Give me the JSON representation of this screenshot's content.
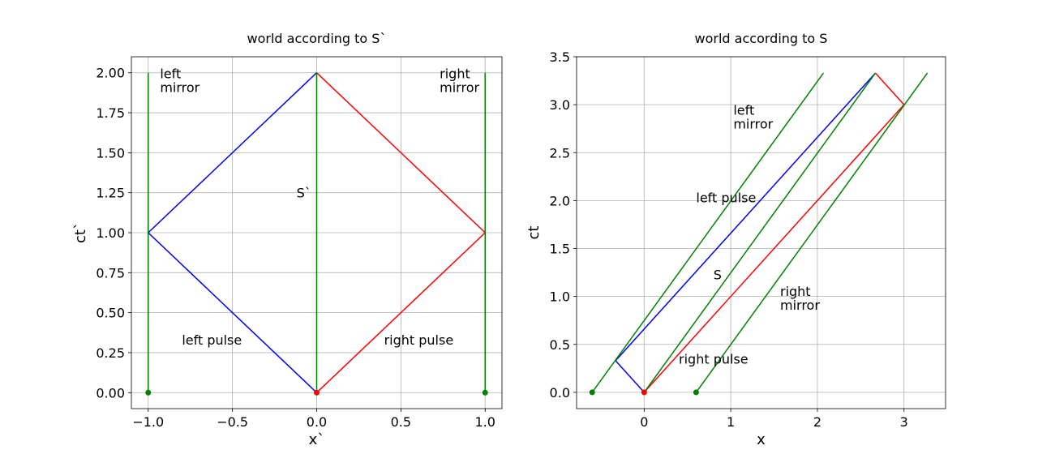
{
  "chart_data": [
    {
      "type": "line",
      "title": "world according to S`",
      "xlabel": "x`",
      "ylabel": "ct`",
      "xlim": [
        -1.1,
        1.1
      ],
      "ylim": [
        -0.1,
        2.1
      ],
      "xticks": [
        -1.0,
        -0.5,
        0.0,
        0.5,
        1.0
      ],
      "xtick_labels": [
        "−1.0",
        "−0.5",
        "0.0",
        "0.5",
        "1.0"
      ],
      "yticks": [
        0.0,
        0.25,
        0.5,
        0.75,
        1.0,
        1.25,
        1.5,
        1.75,
        2.0
      ],
      "ytick_labels": [
        "0.00",
        "0.25",
        "0.50",
        "0.75",
        "1.00",
        "1.25",
        "1.50",
        "1.75",
        "2.00"
      ],
      "grid": true,
      "series": [
        {
          "color": "#0000ff",
          "x": [
            0,
            -1,
            0
          ],
          "y": [
            0,
            1,
            2
          ]
        },
        {
          "color": "#ff0000",
          "x": [
            0,
            1,
            0
          ],
          "y": [
            0,
            1,
            2
          ]
        },
        {
          "color": "#008000",
          "x": [
            -1,
            -1
          ],
          "y": [
            0,
            2
          ]
        },
        {
          "color": "#008000",
          "x": [
            0,
            0
          ],
          "y": [
            0,
            2
          ]
        },
        {
          "color": "#008000",
          "x": [
            1,
            1
          ],
          "y": [
            0,
            2
          ]
        }
      ],
      "points": [
        {
          "color": "#008000",
          "x": -1,
          "y": 0
        },
        {
          "color": "#008000",
          "x": 1,
          "y": 0
        },
        {
          "color": "#ff0000",
          "x": 0,
          "y": 0
        }
      ],
      "annotations": [
        {
          "lines": [
            "left",
            "mirror"
          ],
          "x": -0.93,
          "y": 1.88
        },
        {
          "lines": [
            "right",
            "mirror"
          ],
          "x": 0.73,
          "y": 1.88
        },
        {
          "lines": [
            "S`"
          ],
          "x": -0.12,
          "y": 1.22
        },
        {
          "lines": [
            "left pulse"
          ],
          "x": -0.8,
          "y": 0.3
        },
        {
          "lines": [
            "right pulse"
          ],
          "x": 0.4,
          "y": 0.3
        }
      ]
    },
    {
      "type": "line",
      "title": "world according to S",
      "xlabel": "x",
      "ylabel": "ct",
      "xlim": [
        -0.78,
        3.48
      ],
      "ylim": [
        -0.17,
        3.5
      ],
      "xticks": [
        0,
        1,
        2,
        3
      ],
      "xtick_labels": [
        "0",
        "1",
        "2",
        "3"
      ],
      "yticks": [
        0.0,
        0.5,
        1.0,
        1.5,
        2.0,
        2.5,
        3.0,
        3.5
      ],
      "ytick_labels": [
        "0.0",
        "0.5",
        "1.0",
        "1.5",
        "2.0",
        "2.5",
        "3.0",
        "3.5"
      ],
      "grid": true,
      "series": [
        {
          "color": "#0000ff",
          "x": [
            0,
            -0.33,
            2.67
          ],
          "y": [
            0,
            0.33,
            3.33
          ]
        },
        {
          "color": "#ff0000",
          "x": [
            0,
            3,
            2.67
          ],
          "y": [
            0,
            3,
            3.33
          ]
        },
        {
          "color": "#008000",
          "x": [
            -0.6,
            2.07
          ],
          "y": [
            0,
            3.33
          ]
        },
        {
          "color": "#008000",
          "x": [
            0,
            2.67
          ],
          "y": [
            0,
            3.33
          ]
        },
        {
          "color": "#008000",
          "x": [
            0.6,
            3.27
          ],
          "y": [
            0,
            3.33
          ]
        }
      ],
      "points": [
        {
          "color": "#008000",
          "x": -0.6,
          "y": 0
        },
        {
          "color": "#008000",
          "x": 0.6,
          "y": 0
        },
        {
          "color": "#ff0000",
          "x": 0,
          "y": 0
        }
      ],
      "annotations": [
        {
          "lines": [
            "left",
            "mirror"
          ],
          "x": 1.03,
          "y": 2.75
        },
        {
          "lines": [
            "left pulse"
          ],
          "x": 0.6,
          "y": 1.98
        },
        {
          "lines": [
            "S"
          ],
          "x": 0.8,
          "y": 1.18
        },
        {
          "lines": [
            "right",
            "mirror"
          ],
          "x": 1.57,
          "y": 0.86
        },
        {
          "lines": [
            "right pulse"
          ],
          "x": 0.4,
          "y": 0.3
        }
      ]
    }
  ]
}
